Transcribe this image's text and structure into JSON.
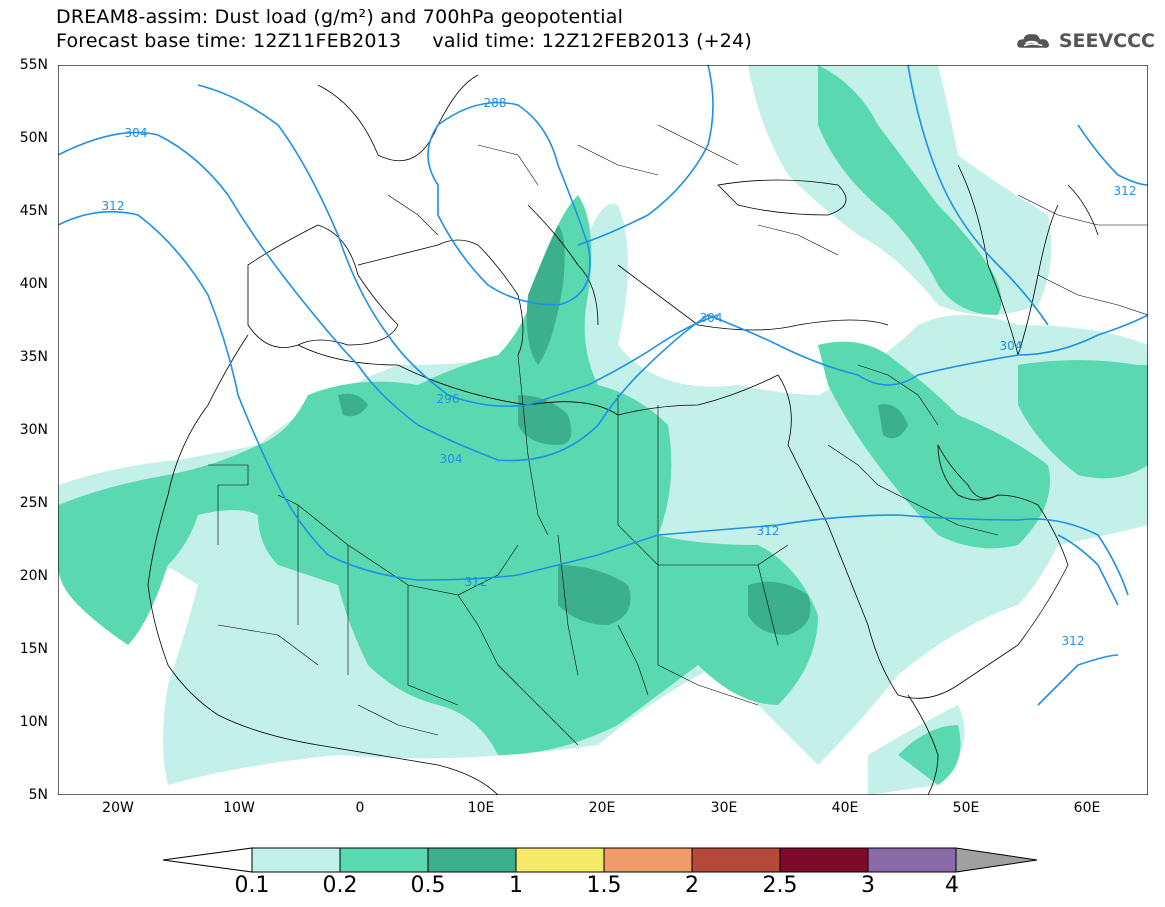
{
  "header": {
    "line1": "DREAM8-assim: Dust load (g/m²) and 700hPa geopotential",
    "line2": "Forecast base time: 12Z11FEB2013     valid time: 12Z12FEB2013 (+24)"
  },
  "logo": {
    "text": "SEEVCCC",
    "icon": "cloud-logo-icon"
  },
  "axes": {
    "lat_labels": [
      "55N",
      "50N",
      "45N",
      "40N",
      "35N",
      "30N",
      "25N",
      "20N",
      "15N",
      "10N",
      "5N"
    ],
    "lon_labels": [
      "20W",
      "10W",
      "0",
      "10E",
      "20E",
      "30E",
      "40E",
      "50E",
      "60E"
    ],
    "lon_range": [
      -25,
      65
    ],
    "lat_range": [
      5,
      55
    ]
  },
  "contour_labels": [
    "288",
    "304",
    "312",
    "304",
    "296",
    "304",
    "312",
    "312",
    "304",
    "312",
    "312"
  ],
  "colorbar": {
    "levels": [
      "0.1",
      "0.2",
      "0.5",
      "1",
      "1.5",
      "2",
      "2.5",
      "3",
      "4"
    ],
    "colors": [
      "#ffffff",
      "#c3f0e8",
      "#5ad9b0",
      "#3cb08c",
      "#f5e96a",
      "#f09a6a",
      "#b5493a",
      "#7d0a2a",
      "#8a6aa8",
      "#a0a0a0"
    ]
  },
  "colors": {
    "dust_light": "#c3f0e8",
    "dust_mid": "#5ad9b0",
    "dust_dark": "#3cb08c",
    "contour": "#1e90e6"
  }
}
